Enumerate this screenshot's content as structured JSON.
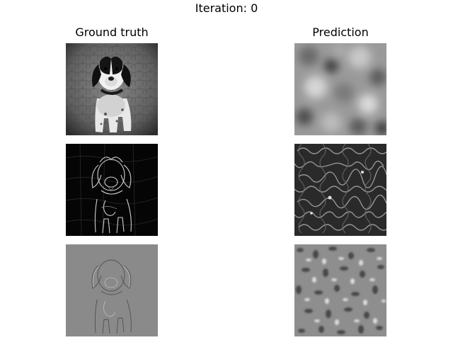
{
  "figure": {
    "title": "Iteration: 0"
  },
  "columns": {
    "left_title": "Ground truth",
    "right_title": "Prediction"
  }
}
